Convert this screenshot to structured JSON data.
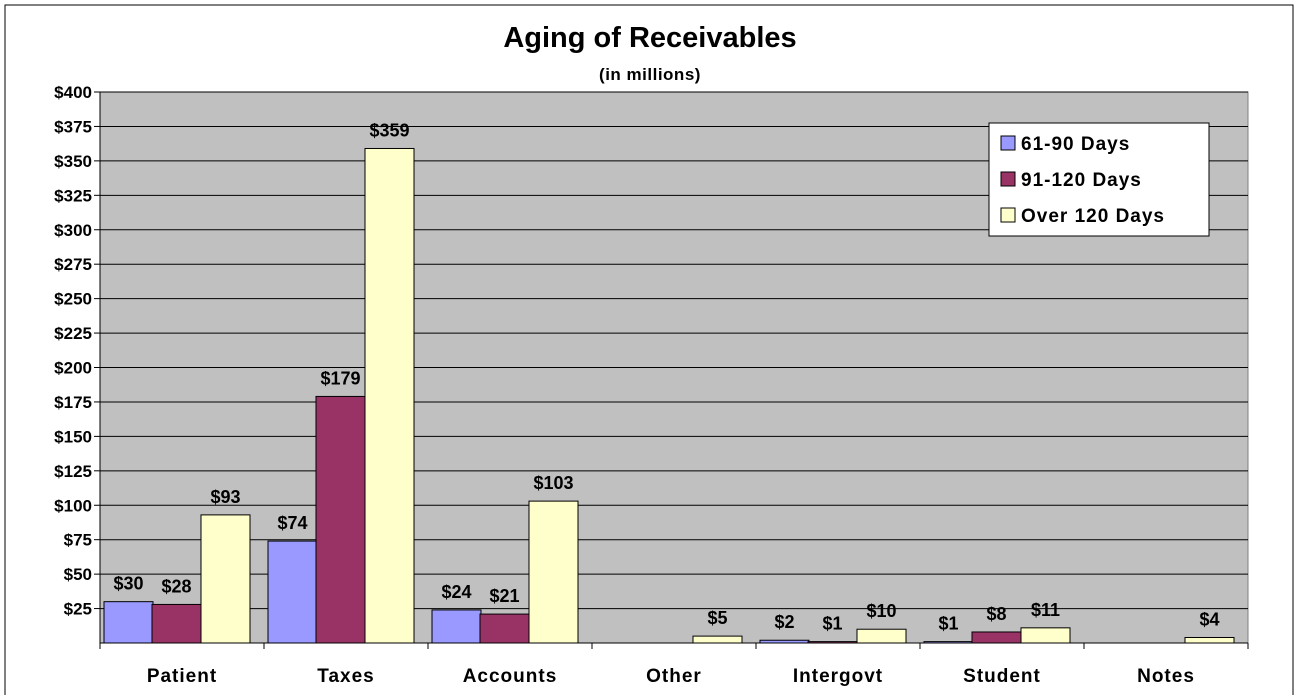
{
  "chart_data": {
    "type": "bar",
    "title": "Aging of Receivables",
    "subtitle": "(in millions)",
    "xlabel": "",
    "ylabel": "",
    "ylim": [
      0,
      400
    ],
    "yticks": [
      25,
      50,
      75,
      100,
      125,
      150,
      175,
      200,
      225,
      250,
      275,
      300,
      325,
      350,
      375,
      400
    ],
    "ytick_labels": [
      "$25",
      "$50",
      "$75",
      "$100",
      "$125",
      "$150",
      "$175",
      "$200",
      "$225",
      "$250",
      "$275",
      "$300",
      "$325",
      "$350",
      "$375",
      "$400"
    ],
    "grid": true,
    "legend_position": "top-right",
    "categories": [
      "Patient",
      "Taxes",
      "Accounts",
      "Other",
      "Intergovt",
      "Student",
      "Notes"
    ],
    "series": [
      {
        "name": "61-90 Days",
        "color": "#9999ff",
        "values": [
          30,
          74,
          24,
          0,
          2,
          1,
          0
        ],
        "labels": [
          "$30",
          "$74",
          "$24",
          "",
          "$2",
          "$1",
          ""
        ]
      },
      {
        "name": "91-120 Days",
        "color": "#993366",
        "values": [
          28,
          179,
          21,
          0,
          1,
          8,
          0
        ],
        "labels": [
          "$28",
          "$179",
          "$21",
          "",
          "$1",
          "$8",
          ""
        ]
      },
      {
        "name": "Over 120 Days",
        "color": "#ffffcc",
        "values": [
          93,
          359,
          103,
          5,
          10,
          11,
          4
        ],
        "labels": [
          "$93",
          "$359",
          "$103",
          "$5",
          "$10",
          "$11",
          "$4"
        ]
      }
    ],
    "colors": {
      "plot_background": "#c0c0c0",
      "page_background": "#ffffff"
    }
  }
}
